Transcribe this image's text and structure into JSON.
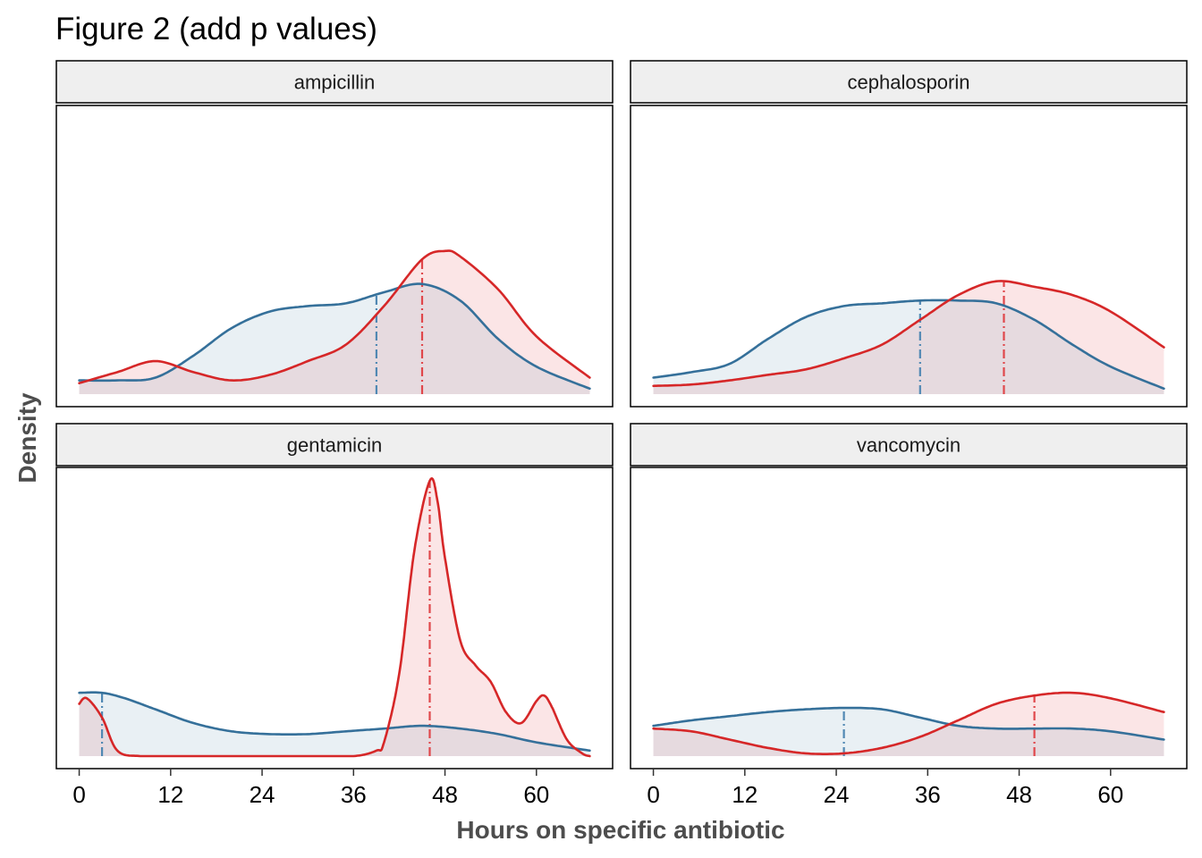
{
  "chart_data": {
    "type": "area",
    "title": "Figure 2 (add p values)",
    "xlabel": "Hours on specific antibiotic",
    "ylabel": "Density",
    "xlim": [
      -3,
      70
    ],
    "x_ticks": [
      0,
      12,
      24,
      36,
      48,
      60
    ],
    "grid": false,
    "legend": "none",
    "colors": {
      "blue_line": "#35709a",
      "blue_fill": "#e9f0f4",
      "blue_dash": "#5088b3",
      "red_line": "#d62728",
      "red_fill": "#fbe5e6",
      "red_dash": "#e0474b",
      "overlap_fill": "#e6dadf",
      "strip_bg": "#efefef"
    },
    "panels": [
      {
        "label": "ampicillin",
        "ylim": [
          0,
          1
        ],
        "series": [
          {
            "color": "blue",
            "median": 39,
            "x": [
              0,
              5,
              10,
              15,
              20,
              25,
              30,
              35,
              40,
              45,
              50,
              55,
              60,
              67
            ],
            "y": [
              0.05,
              0.05,
              0.06,
              0.14,
              0.24,
              0.3,
              0.32,
              0.33,
              0.37,
              0.4,
              0.34,
              0.2,
              0.1,
              0.02
            ]
          },
          {
            "color": "red",
            "median": 45,
            "x": [
              0,
              5,
              10,
              15,
              20,
              25,
              30,
              35,
              40,
              45,
              48,
              50,
              55,
              60,
              67
            ],
            "y": [
              0.04,
              0.08,
              0.12,
              0.08,
              0.05,
              0.07,
              0.12,
              0.18,
              0.32,
              0.49,
              0.52,
              0.5,
              0.38,
              0.21,
              0.06
            ]
          }
        ]
      },
      {
        "label": "cephalosporin",
        "ylim": [
          0,
          1
        ],
        "series": [
          {
            "color": "blue",
            "median": 35,
            "x": [
              0,
              5,
              10,
              15,
              20,
              25,
              30,
              35,
              40,
              45,
              50,
              55,
              60,
              67
            ],
            "y": [
              0.06,
              0.08,
              0.11,
              0.2,
              0.28,
              0.32,
              0.33,
              0.34,
              0.34,
              0.33,
              0.27,
              0.18,
              0.1,
              0.02
            ]
          },
          {
            "color": "red",
            "median": 46,
            "x": [
              0,
              5,
              10,
              15,
              20,
              25,
              30,
              35,
              40,
              45,
              50,
              55,
              60,
              67
            ],
            "y": [
              0.03,
              0.035,
              0.05,
              0.07,
              0.09,
              0.13,
              0.18,
              0.27,
              0.36,
              0.41,
              0.39,
              0.36,
              0.3,
              0.17
            ]
          }
        ]
      },
      {
        "label": "gentamicin",
        "ylim": [
          0,
          1
        ],
        "series": [
          {
            "color": "blue",
            "median": 3,
            "x": [
              0,
              3,
              6,
              10,
              15,
              20,
              25,
              30,
              35,
              40,
              45,
              50,
              55,
              60,
              67
            ],
            "y": [
              0.23,
              0.23,
              0.21,
              0.17,
              0.12,
              0.09,
              0.08,
              0.08,
              0.09,
              0.1,
              0.11,
              0.1,
              0.08,
              0.05,
              0.02
            ]
          },
          {
            "color": "red",
            "median": 46,
            "x": [
              0,
              1,
              3,
              5,
              8,
              12,
              20,
              30,
              36,
              39,
              40,
              42,
              44,
              46,
              47,
              48,
              50,
              52,
              54,
              56,
              58,
              60,
              61,
              62,
              64,
              66,
              67
            ],
            "y": [
              0.19,
              0.21,
              0.14,
              0.02,
              0.0,
              0.0,
              0.0,
              0.0,
              0.0,
              0.02,
              0.05,
              0.3,
              0.75,
              1.0,
              0.93,
              0.72,
              0.42,
              0.33,
              0.27,
              0.16,
              0.12,
              0.2,
              0.22,
              0.18,
              0.06,
              0.01,
              0.0
            ]
          }
        ]
      },
      {
        "label": "vancomycin",
        "ylim": [
          0,
          1
        ],
        "series": [
          {
            "color": "blue",
            "median": 25,
            "x": [
              0,
              5,
              10,
              15,
              20,
              25,
              30,
              35,
              40,
              45,
              50,
              55,
              60,
              67
            ],
            "y": [
              0.11,
              0.13,
              0.145,
              0.16,
              0.17,
              0.175,
              0.17,
              0.14,
              0.11,
              0.1,
              0.1,
              0.1,
              0.09,
              0.06
            ]
          },
          {
            "color": "red",
            "median": 50,
            "x": [
              0,
              5,
              10,
              15,
              20,
              25,
              30,
              35,
              40,
              45,
              50,
              55,
              60,
              67
            ],
            "y": [
              0.1,
              0.09,
              0.06,
              0.03,
              0.01,
              0.01,
              0.03,
              0.07,
              0.13,
              0.19,
              0.22,
              0.23,
              0.21,
              0.16
            ]
          }
        ]
      }
    ]
  }
}
